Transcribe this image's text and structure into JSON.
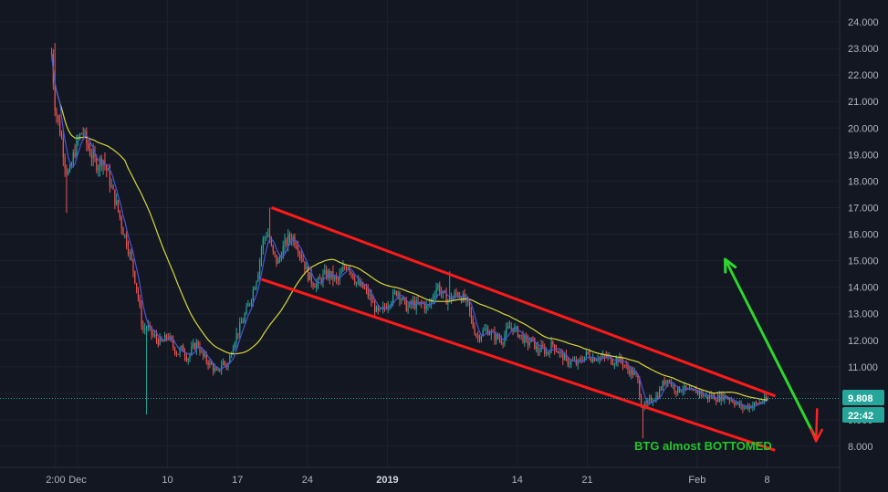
{
  "chart_data": {
    "type": "candlestick",
    "symbol": "BTG",
    "ylim": [
      7.6,
      24.6
    ],
    "y_ticks": [
      "24.000",
      "23.000",
      "22.000",
      "21.000",
      "20.000",
      "19.000",
      "18.000",
      "17.000",
      "16.000",
      "15.000",
      "14.000",
      "13.000",
      "12.000",
      "11.000",
      "10.000",
      "9.000",
      "8.000"
    ],
    "x_ticks": [
      {
        "label": "2:00",
        "day": -2.2,
        "bold": false
      },
      {
        "label": "Dec",
        "day": 0,
        "bold": false
      },
      {
        "label": "10",
        "day": 9,
        "bold": false
      },
      {
        "label": "17",
        "day": 16,
        "bold": false
      },
      {
        "label": "24",
        "day": 23,
        "bold": false
      },
      {
        "label": "2019",
        "day": 31,
        "bold": true
      },
      {
        "label": "14",
        "day": 44,
        "bold": false
      },
      {
        "label": "21",
        "day": 51,
        "bold": false
      },
      {
        "label": "Feb",
        "day": 62,
        "bold": false
      },
      {
        "label": "8",
        "day": 69,
        "bold": false
      }
    ],
    "price_path": [
      [
        -2.6,
        22.8
      ],
      [
        -2.3,
        21.0
      ],
      [
        -2.0,
        20.3
      ],
      [
        -1.6,
        19.6
      ],
      [
        -1.2,
        18.5
      ],
      [
        -0.8,
        18.2
      ],
      [
        -0.4,
        19.0
      ],
      [
        0,
        19.5
      ],
      [
        0.5,
        19.9
      ],
      [
        1,
        19.3
      ],
      [
        1.5,
        18.9
      ],
      [
        2,
        18.6
      ],
      [
        2.5,
        18.9
      ],
      [
        3,
        18.3
      ],
      [
        3.5,
        17.6
      ],
      [
        4,
        17.0
      ],
      [
        4.5,
        16.2
      ],
      [
        5,
        15.6
      ],
      [
        5.5,
        14.8
      ],
      [
        6,
        13.8
      ],
      [
        6.5,
        12.4
      ],
      [
        7,
        12.5
      ],
      [
        7.5,
        12.2
      ],
      [
        8,
        12.0
      ],
      [
        8.5,
        11.9
      ],
      [
        9,
        12.2
      ],
      [
        9.5,
        11.8
      ],
      [
        10,
        11.5
      ],
      [
        10.5,
        11.7
      ],
      [
        11,
        11.3
      ],
      [
        11.5,
        11.7
      ],
      [
        12,
        11.9
      ],
      [
        12.5,
        11.4
      ],
      [
        13,
        11.2
      ],
      [
        13.5,
        11.0
      ],
      [
        14,
        10.7
      ],
      [
        14.5,
        11.2
      ],
      [
        15,
        11.0
      ],
      [
        15.5,
        11.8
      ],
      [
        16,
        12.3
      ],
      [
        16.5,
        12.7
      ],
      [
        17,
        13.2
      ],
      [
        17.5,
        13.8
      ],
      [
        18,
        14.5
      ],
      [
        18.5,
        15.7
      ],
      [
        19,
        16.1
      ],
      [
        19.5,
        15.3
      ],
      [
        20,
        14.9
      ],
      [
        20.5,
        15.4
      ],
      [
        21,
        15.8
      ],
      [
        21.5,
        15.9
      ],
      [
        22,
        15.6
      ],
      [
        22.5,
        15.1
      ],
      [
        23,
        14.5
      ],
      [
        23.5,
        14.2
      ],
      [
        24,
        14.1
      ],
      [
        24.5,
        14.4
      ],
      [
        25,
        14.5
      ],
      [
        25.5,
        14.4
      ],
      [
        26,
        14.2
      ],
      [
        26.5,
        14.6
      ],
      [
        27,
        14.9
      ],
      [
        27.5,
        14.5
      ],
      [
        28,
        14.1
      ],
      [
        28.5,
        14.0
      ],
      [
        29,
        13.8
      ],
      [
        29.5,
        13.4
      ],
      [
        30,
        13.0
      ],
      [
        30.5,
        13.1
      ],
      [
        31,
        13.4
      ],
      [
        31.5,
        13.6
      ],
      [
        32,
        13.9
      ],
      [
        32.5,
        13.5
      ],
      [
        33,
        13.2
      ],
      [
        33.5,
        13.4
      ],
      [
        34,
        13.3
      ],
      [
        34.5,
        13.4
      ],
      [
        35,
        13.2
      ],
      [
        35.5,
        13.6
      ],
      [
        36,
        14.1
      ],
      [
        36.5,
        13.7
      ],
      [
        37,
        13.5
      ],
      [
        37.5,
        13.6
      ],
      [
        38,
        13.8
      ],
      [
        38.5,
        13.6
      ],
      [
        39,
        13.4
      ],
      [
        39.5,
        12.6
      ],
      [
        40,
        12.1
      ],
      [
        40.5,
        12.3
      ],
      [
        41,
        12.4
      ],
      [
        41.5,
        12.2
      ],
      [
        42,
        12.1
      ],
      [
        42.5,
        12.0
      ],
      [
        43,
        12.4
      ],
      [
        43.5,
        12.5
      ],
      [
        44,
        12.3
      ],
      [
        44.5,
        12.1
      ],
      [
        45,
        11.9
      ],
      [
        45.5,
        12.0
      ],
      [
        46,
        11.6
      ],
      [
        46.5,
        11.7
      ],
      [
        47,
        11.5
      ],
      [
        47.5,
        11.9
      ],
      [
        48,
        11.6
      ],
      [
        48.5,
        11.4
      ],
      [
        49,
        11.2
      ],
      [
        49.5,
        11.2
      ],
      [
        50,
        11.1
      ],
      [
        50.5,
        11.3
      ],
      [
        51,
        11.5
      ],
      [
        51.5,
        11.3
      ],
      [
        52,
        11.4
      ],
      [
        52.5,
        11.3
      ],
      [
        53,
        11.4
      ],
      [
        53.5,
        11.2
      ],
      [
        54,
        11.3
      ],
      [
        54.5,
        11.2
      ],
      [
        55,
        10.9
      ],
      [
        55.5,
        10.8
      ],
      [
        56,
        10.6
      ],
      [
        56.4,
        9.6
      ],
      [
        56.8,
        9.45
      ],
      [
        57.2,
        9.7
      ],
      [
        57.6,
        9.8
      ],
      [
        58,
        9.9
      ],
      [
        58.5,
        10.3
      ],
      [
        59,
        10.6
      ],
      [
        59.5,
        10.3
      ],
      [
        60,
        10.1
      ],
      [
        60.5,
        10.2
      ],
      [
        61,
        10.1
      ],
      [
        61.5,
        10.0
      ],
      [
        62,
        10.1
      ],
      [
        62.5,
        9.95
      ],
      [
        63,
        9.85
      ],
      [
        63.5,
        9.9
      ],
      [
        64,
        9.8
      ],
      [
        64.5,
        9.9
      ],
      [
        65,
        9.85
      ],
      [
        65.5,
        9.75
      ],
      [
        66,
        9.6
      ],
      [
        66.5,
        9.45
      ],
      [
        67,
        9.5
      ],
      [
        67.5,
        9.55
      ],
      [
        68,
        9.6
      ],
      [
        68.5,
        9.7
      ],
      [
        69,
        9.75
      ],
      [
        69.2,
        9.808
      ]
    ],
    "channel": {
      "upper": [
        [
          19.4,
          17.0
        ],
        [
          69.8,
          9.9
        ]
      ],
      "lower": [
        [
          18.4,
          14.3
        ],
        [
          69.8,
          7.85
        ]
      ]
    },
    "current_price": "9.808",
    "countdown": "22:42",
    "annotation": "BTG almost BOTTOMED",
    "colors": {
      "background": "#131722",
      "up": "#26a69a",
      "down": "#ef5350",
      "ma_fast": "#4a55d6",
      "ma_slow": "#d8d83a",
      "channel": "#ff1a1a",
      "green_arrow": "#2ed52e",
      "red_arrow": "#ff2222",
      "price_badge": "#26a69a"
    }
  }
}
